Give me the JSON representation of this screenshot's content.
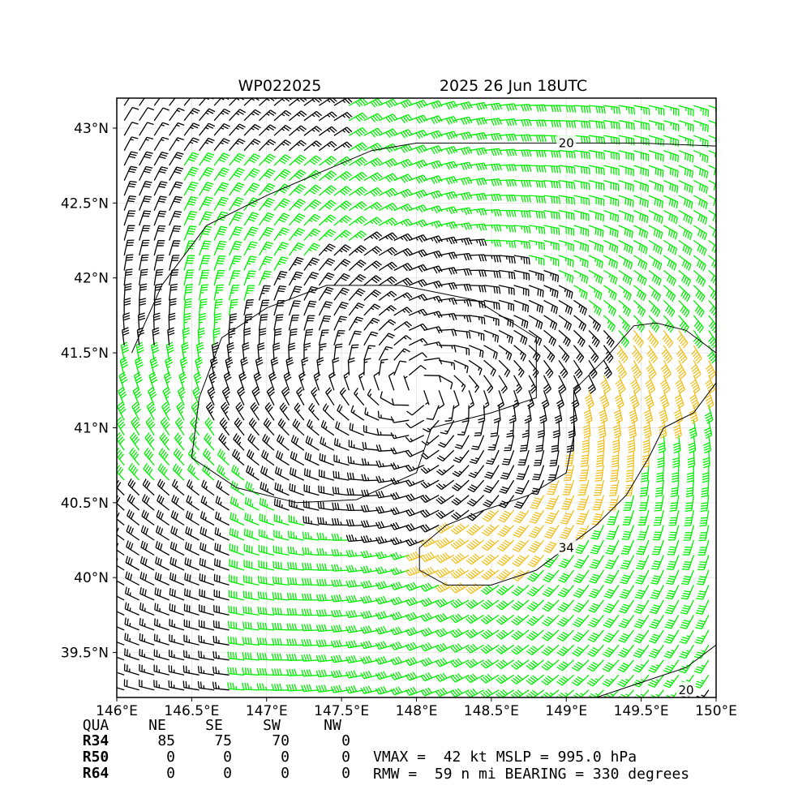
{
  "chart_data": {
    "type": "wind_barb_map",
    "title_left": "WP022025",
    "title_right": "2025 26 Jun 18UTC",
    "xlim": [
      146,
      150
    ],
    "ylim": [
      39.2,
      43.2
    ],
    "x_ticks": [
      146,
      146.5,
      147,
      147.5,
      148,
      148.5,
      149,
      149.5,
      150
    ],
    "x_tick_labels": [
      "146°E",
      "146.5°E",
      "147°E",
      "147.5°E",
      "148°E",
      "148.5°E",
      "149°E",
      "149.5°E",
      "150°E"
    ],
    "y_ticks": [
      39.5,
      40,
      40.5,
      41,
      41.5,
      42,
      42.5,
      43
    ],
    "y_tick_labels": [
      "39.5°N",
      "40°N",
      "40.5°N",
      "41°N",
      "41.5°N",
      "42°N",
      "42.5°N",
      "43°N"
    ],
    "grid": true,
    "storm_center": {
      "lon": 148.0,
      "lat": 41.25
    },
    "wind_speed_classes": [
      {
        "threshold": 0,
        "color": "#000000"
      },
      {
        "threshold": 34,
        "color": "#00ee00"
      },
      {
        "threshold": 50,
        "color": "#f0c020"
      }
    ],
    "contours": [
      {
        "label": "20",
        "label_lon": 149.0,
        "label_lat": 42.9
      },
      {
        "label": "34",
        "label_lon": 149.0,
        "label_lat": 40.2
      },
      {
        "label": "20",
        "label_lon": 149.8,
        "label_lat": 39.25
      }
    ],
    "contour_34kt_polygon": [
      [
        148.02,
        40.05
      ],
      [
        148.02,
        40.2
      ],
      [
        148.2,
        40.35
      ],
      [
        148.45,
        40.45
      ],
      [
        148.75,
        40.55
      ],
      [
        149.0,
        40.7
      ],
      [
        149.05,
        40.95
      ],
      [
        149.05,
        41.25
      ],
      [
        149.25,
        41.45
      ],
      [
        149.45,
        41.68
      ],
      [
        149.6,
        41.7
      ],
      [
        149.8,
        41.65
      ],
      [
        150.0,
        41.5
      ],
      [
        150.0,
        41.3
      ],
      [
        149.85,
        41.1
      ],
      [
        149.65,
        41.0
      ],
      [
        149.55,
        40.8
      ],
      [
        149.4,
        40.55
      ],
      [
        149.2,
        40.35
      ],
      [
        149.0,
        40.2
      ],
      [
        148.8,
        40.05
      ],
      [
        148.5,
        39.95
      ],
      [
        148.2,
        39.95
      ],
      [
        148.02,
        40.05
      ]
    ],
    "legend_table": {
      "headers": [
        "QUA",
        "NE",
        "SE",
        "SW",
        "NW"
      ],
      "rows": [
        {
          "name": "R34",
          "values": [
            "85",
            "75",
            "70",
            "0"
          ]
        },
        {
          "name": "R50",
          "values": [
            "0",
            "0",
            "0",
            "0"
          ]
        },
        {
          "name": "R64",
          "values": [
            "0",
            "0",
            "0",
            "0"
          ]
        }
      ]
    },
    "summary": {
      "line1": "VMAX =  42 kt MSLP = 995.0 hPa",
      "line2": "RMW =  59 n mi BEARING = 330 degrees"
    }
  }
}
